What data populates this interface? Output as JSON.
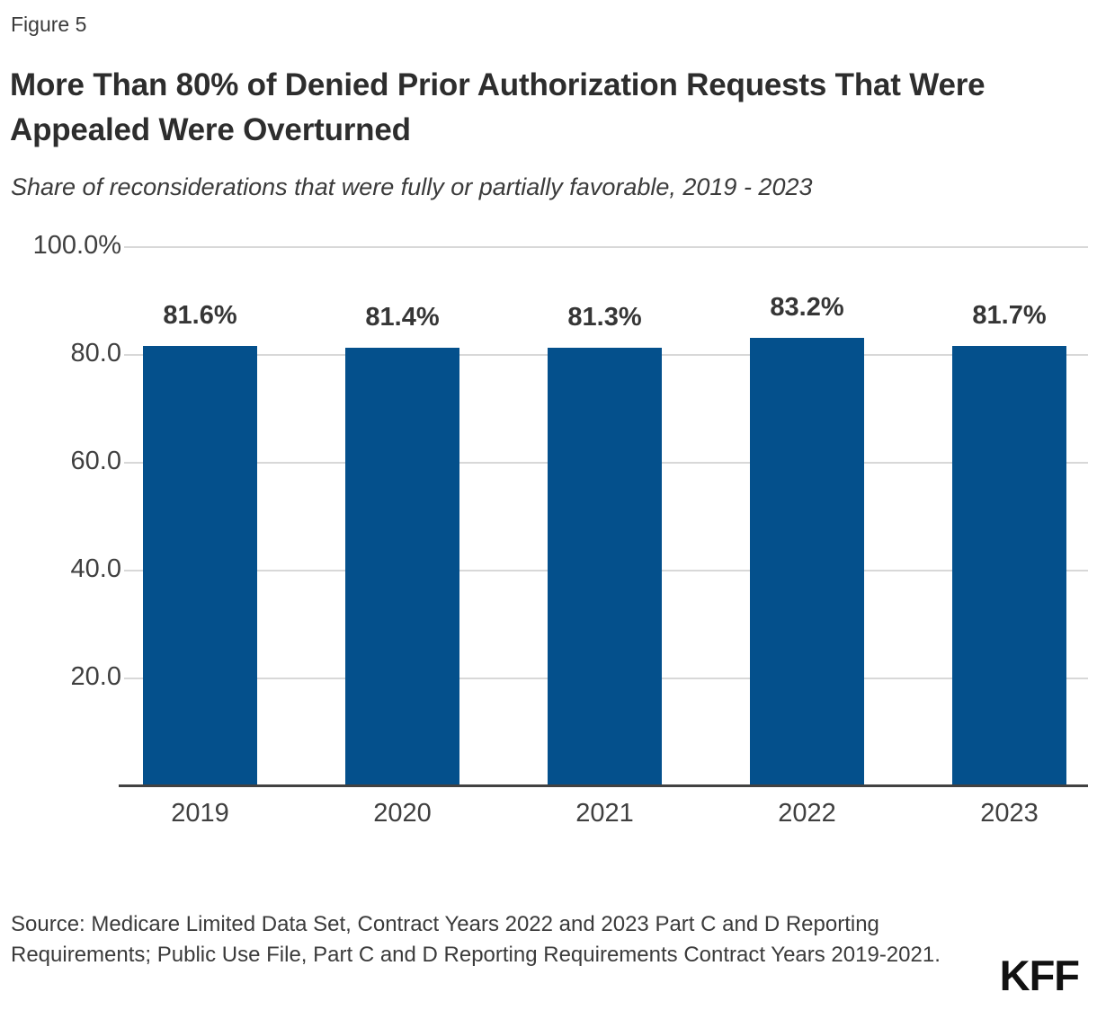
{
  "figure_label": "Figure 5",
  "title": "More Than 80% of Denied Prior Authorization Requests That Were Appealed Were Overturned",
  "subtitle": "Share of reconsiderations that were fully or partially favorable, 2019 - 2023",
  "source_note": "Source: Medicare Limited Data Set, Contract Years 2022 and 2023 Part C and D Reporting Requirements; Public Use File, Part C and D Reporting Requirements Contract Years 2019-2021.",
  "logo_text": "KFF",
  "colors": {
    "bar": "#04508c",
    "gridline": "#d8d8d8",
    "axis_line": "#424242",
    "tick_text": "#3f3f3f",
    "title_text": "#2d2d2d"
  },
  "chart_data": {
    "type": "bar",
    "title": "More Than 80% of Denied Prior Authorization Requests That Were Appealed Were Overturned",
    "subtitle": "Share of reconsiderations that were fully or partially favorable, 2019 - 2023",
    "categories": [
      "2019",
      "2020",
      "2021",
      "2022",
      "2023"
    ],
    "values": [
      81.6,
      81.4,
      81.3,
      83.2,
      81.7
    ],
    "value_labels": [
      "81.6%",
      "81.4%",
      "81.3%",
      "83.2%",
      "81.7%"
    ],
    "xlabel": "",
    "ylabel": "",
    "ylim": [
      0,
      100
    ],
    "y_ticks": [
      {
        "value": 100,
        "label": "100.0%"
      },
      {
        "value": 80,
        "label": "80.0"
      },
      {
        "value": 60,
        "label": "60.0"
      },
      {
        "value": 40,
        "label": "40.0"
      },
      {
        "value": 20,
        "label": "20.0"
      }
    ],
    "grid": true,
    "legend": false,
    "bar_color": "#04508c"
  }
}
